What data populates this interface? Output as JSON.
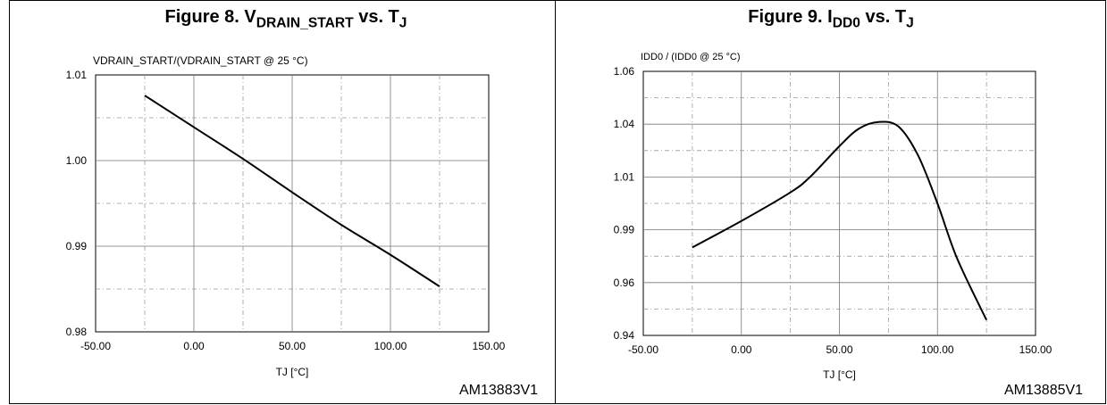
{
  "figures": [
    {
      "title_main": "Figure 8. V",
      "title_sub1": "DRAIN_START",
      "title_mid": " vs. T",
      "title_sub2": "J",
      "reference": "AM13883V1"
    },
    {
      "title_main": "Figure 9. I",
      "title_sub1": "DD0",
      "title_mid": " vs. T",
      "title_sub2": "J",
      "reference": "AM13885V1"
    }
  ],
  "chart_data": [
    {
      "type": "line",
      "title": "Figure 8. VDRAIN_START vs. TJ",
      "ylabel": "VDRAIN_START/(VDRAIN_START @ 25 °C)",
      "xlabel": "TJ [°C]",
      "xlim": [
        -50,
        150
      ],
      "ylim": [
        0.98,
        1.01
      ],
      "xticks": [
        "-50.00",
        "0.00",
        "50.00",
        "100.00",
        "150.00"
      ],
      "yticks": [
        "1.01",
        "1.00",
        "0.99",
        "0.98"
      ],
      "grid": true,
      "series": [
        {
          "x": [
            -25,
            0,
            25,
            50,
            75,
            100,
            125
          ],
          "y": [
            1.0076,
            1.0039,
            1.0002,
            0.9963,
            0.9925,
            0.989,
            0.9853
          ]
        }
      ]
    },
    {
      "type": "line",
      "title": "Figure 9. IDD0 vs. TJ",
      "ylabel": "IDD0 / (IDD0 @ 25 °C)",
      "xlabel": "TJ [°C]",
      "xlim": [
        -50,
        150
      ],
      "ylim": [
        0.94,
        1.06
      ],
      "xticks": [
        "-50.00",
        "0.00",
        "50.00",
        "100.00",
        "150.00"
      ],
      "yticks": [
        "1.06",
        "1.04",
        "1.01",
        "0.99",
        "0.96",
        "0.94"
      ],
      "grid": true,
      "series": [
        {
          "x": [
            -25,
            0,
            25,
            35,
            50,
            60,
            70,
            80,
            90,
            100,
            110,
            125
          ],
          "y": [
            0.98,
            0.992,
            1.005,
            1.012,
            1.026,
            1.034,
            1.037,
            1.035,
            1.022,
            1.0,
            0.975,
            0.947
          ]
        }
      ]
    }
  ]
}
